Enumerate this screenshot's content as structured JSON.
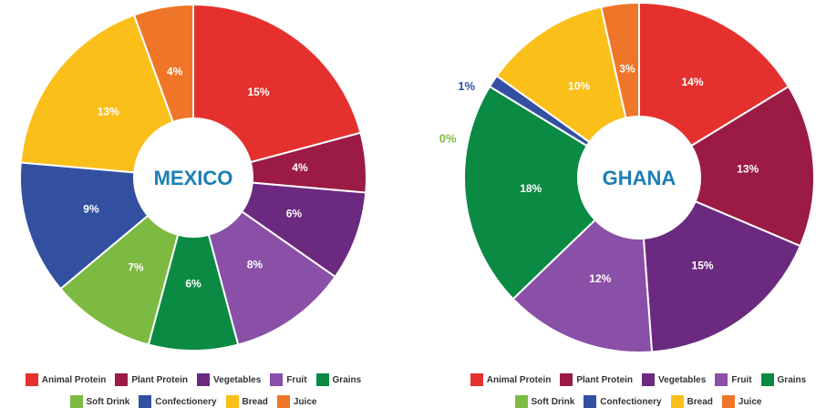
{
  "chart_data": [
    {
      "type": "donut",
      "title": "MEXICO",
      "categories": [
        "Animal Protein",
        "Plant Protein",
        "Vegetables",
        "Fruit",
        "Grains",
        "Soft Drink",
        "Confectionery",
        "Bread",
        "Juice"
      ],
      "values": [
        15,
        4,
        6,
        8,
        6,
        7,
        9,
        13,
        4
      ],
      "value_labels": [
        "15%",
        "4%",
        "6%",
        "8%",
        "6%",
        "7%",
        "9%",
        "13%",
        "4%"
      ],
      "colors": [
        "#e5312e",
        "#9b1b45",
        "#6b2a7f",
        "#8a4fa6",
        "#0b8a43",
        "#7dba42",
        "#3350a0",
        "#fbbf1a",
        "#ef7628"
      ],
      "legend": "bottom"
    },
    {
      "type": "donut",
      "title": "GHANA",
      "categories": [
        "Animal Protein",
        "Plant Protein",
        "Vegetables",
        "Fruit",
        "Grains",
        "Soft Drink",
        "Confectionery",
        "Bread",
        "Juice"
      ],
      "values": [
        14,
        13,
        15,
        12,
        18,
        0,
        1,
        10,
        3
      ],
      "value_labels": [
        "14%",
        "13%",
        "15%",
        "12%",
        "18%",
        "0%",
        "1%",
        "10%",
        "3%"
      ],
      "colors": [
        "#e5312e",
        "#9b1b45",
        "#6b2a7f",
        "#8a4fa6",
        "#0b8a43",
        "#7dba42",
        "#3350a0",
        "#fbbf1a",
        "#ef7628"
      ],
      "legend": "bottom"
    }
  ]
}
